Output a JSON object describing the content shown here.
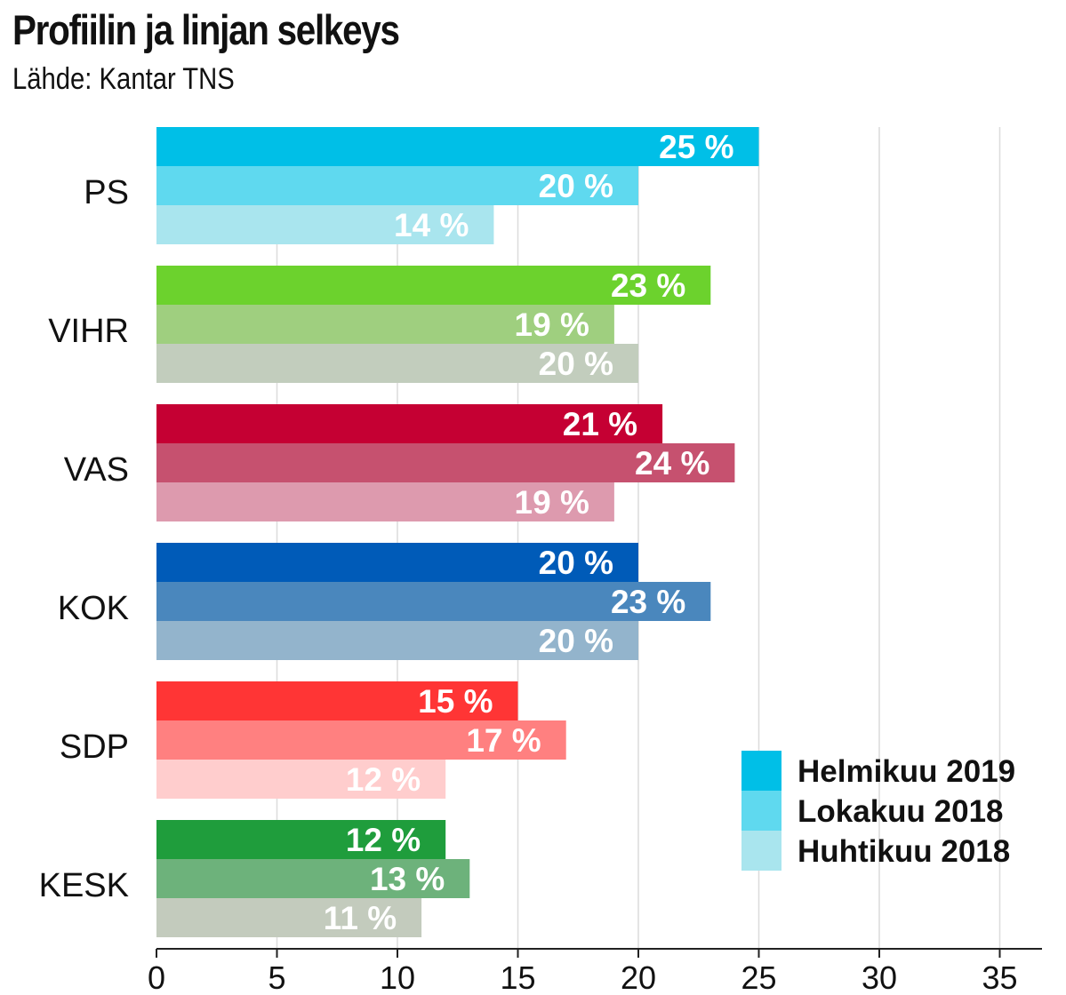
{
  "chart_data": {
    "type": "bar",
    "orientation": "horizontal",
    "title": "Profiilin ja linjan selkeys",
    "subtitle": "Lähde: Kantar TNS",
    "categories": [
      "PS",
      "VIHR",
      "VAS",
      "KOK",
      "SDP",
      "KESK"
    ],
    "series": [
      {
        "name": "Helmikuu 2019",
        "values": [
          25,
          23,
          21,
          20,
          15,
          12
        ]
      },
      {
        "name": "Lokakuu 2018",
        "values": [
          20,
          19,
          24,
          23,
          17,
          13
        ]
      },
      {
        "name": "Huhtikuu 2018",
        "values": [
          14,
          20,
          19,
          20,
          12,
          11
        ]
      }
    ],
    "value_suffix": " %",
    "xlim": [
      0,
      35
    ],
    "xticks": [
      "0",
      "5",
      "10",
      "15",
      "20",
      "25",
      "30",
      "35"
    ],
    "grid": true,
    "legend_position": "bottom-right",
    "legend_colors": [
      "#00bfe7",
      "#5fd9ef",
      "#a9e5ee"
    ],
    "colors": [
      [
        "#00bfe7",
        "#5fd9ef",
        "#a9e5ee"
      ],
      [
        "#6cd22d",
        "#9fcf7f",
        "#c2cdbd"
      ],
      [
        "#c50033",
        "#c6516f",
        "#dd9aae"
      ],
      [
        "#005bb8",
        "#4a87bd",
        "#93b4cc"
      ],
      [
        "#ff3535",
        "#ff8080",
        "#ffcdcd"
      ],
      [
        "#1f9d3c",
        "#6db27b",
        "#c3cbbd"
      ]
    ]
  }
}
